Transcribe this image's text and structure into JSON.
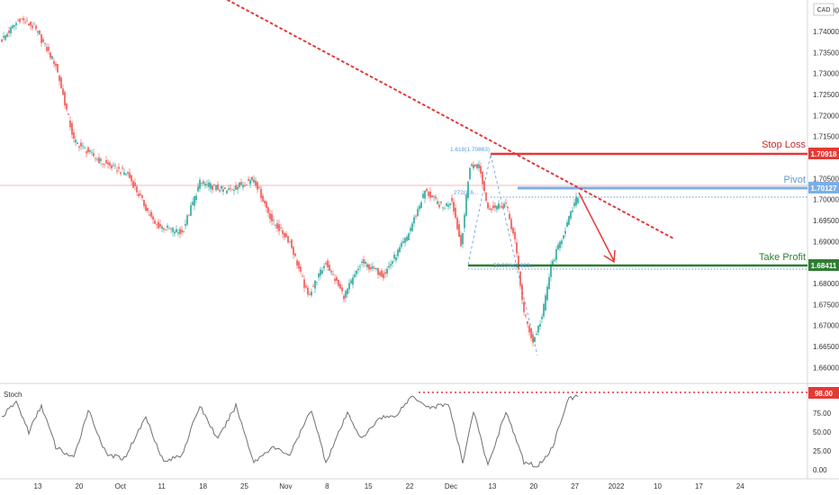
{
  "header": {
    "currency": "CAD"
  },
  "colors": {
    "up": "#26a69a",
    "down": "#ef5350",
    "stop": "#e53935",
    "pivot": "#7baee8",
    "take_profit": "#2e7d32",
    "stoch": "#707070",
    "fib": "#5b9bd5"
  },
  "price_axis": {
    "ticks": [
      "1.74500",
      "1.74000",
      "1.73500",
      "1.73000",
      "1.72500",
      "1.72000",
      "1.71500",
      "1.70500",
      "1.70000",
      "1.69500",
      "1.69000",
      "1.68000",
      "1.67500",
      "1.67000",
      "1.66500",
      "1.66000"
    ]
  },
  "stoch_axis": {
    "ticks": [
      "75.00",
      "50.00",
      "25.00",
      "0.00"
    ]
  },
  "time_axis": {
    "ticks": [
      "13",
      "20",
      "Oct",
      "11",
      "18",
      "25",
      "Nov",
      "8",
      "15",
      "22",
      "Dec",
      "13",
      "20",
      "27",
      "2022",
      "10",
      "17",
      "24"
    ]
  },
  "levels": {
    "stop_loss": {
      "label": "Stop Loss",
      "value": "1.70918"
    },
    "pivot": {
      "label": "Pivot",
      "value": "1.70127"
    },
    "take_profit": {
      "label": "Take Profit",
      "value": "1.68411"
    }
  },
  "fib_labels": {
    "ext": "1.618(1.70863)",
    "ret1": "272(1.6...",
    "ret2": "50.00%(1.683..."
  },
  "stoch": {
    "title": "Stoch",
    "current": "98.00"
  },
  "chart_data": [
    {
      "type": "candlestick",
      "title": "",
      "currency": "CAD",
      "ylim": [
        1.6575,
        1.7475
      ],
      "x_ticks": [
        "13",
        "20",
        "Oct",
        "11",
        "18",
        "25",
        "Nov",
        "8",
        "15",
        "22",
        "Dec",
        "13",
        "20",
        "27",
        "2022",
        "10",
        "17",
        "24"
      ],
      "anchors": [
        {
          "i": 0,
          "close": 1.738
        },
        {
          "i": 10,
          "close": 1.743
        },
        {
          "i": 18,
          "close": 1.741
        },
        {
          "i": 30,
          "close": 1.732
        },
        {
          "i": 40,
          "close": 1.714
        },
        {
          "i": 55,
          "close": 1.709
        },
        {
          "i": 70,
          "close": 1.706
        },
        {
          "i": 85,
          "close": 1.694
        },
        {
          "i": 100,
          "close": 1.692
        },
        {
          "i": 110,
          "close": 1.704
        },
        {
          "i": 125,
          "close": 1.702
        },
        {
          "i": 140,
          "close": 1.705
        },
        {
          "i": 150,
          "close": 1.695
        },
        {
          "i": 160,
          "close": 1.69
        },
        {
          "i": 170,
          "close": 1.677
        },
        {
          "i": 180,
          "close": 1.685
        },
        {
          "i": 190,
          "close": 1.677
        },
        {
          "i": 200,
          "close": 1.685
        },
        {
          "i": 212,
          "close": 1.682
        },
        {
          "i": 225,
          "close": 1.691
        },
        {
          "i": 235,
          "close": 1.702
        },
        {
          "i": 245,
          "close": 1.698
        },
        {
          "i": 250,
          "close": 1.7
        },
        {
          "i": 255,
          "close": 1.689
        },
        {
          "i": 260,
          "close": 1.708
        },
        {
          "i": 265,
          "close": 1.708
        },
        {
          "i": 270,
          "close": 1.698
        },
        {
          "i": 280,
          "close": 1.699
        },
        {
          "i": 285,
          "close": 1.69
        },
        {
          "i": 290,
          "close": 1.673
        },
        {
          "i": 295,
          "close": 1.666
        },
        {
          "i": 300,
          "close": 1.672
        },
        {
          "i": 305,
          "close": 1.684
        },
        {
          "i": 312,
          "close": 1.692
        },
        {
          "i": 320,
          "close": 1.701
        }
      ],
      "levels": [
        {
          "name": "Stop Loss",
          "value": 1.70918
        },
        {
          "name": "Pivot",
          "value": 1.70127
        },
        {
          "name": "Take Profit",
          "value": 1.68411
        }
      ],
      "trendline": {
        "start": {
          "i": 125,
          "price": 1.7475
        },
        "end": {
          "i": 373,
          "price": 1.6895
        }
      }
    },
    {
      "type": "line",
      "title": "Stoch",
      "ylim": [
        0,
        100
      ],
      "y_ticks": [
        75,
        50,
        25,
        0
      ],
      "reference": 98.0,
      "anchors": [
        {
          "i": 0,
          "v": 70
        },
        {
          "i": 8,
          "v": 90
        },
        {
          "i": 15,
          "v": 50
        },
        {
          "i": 22,
          "v": 85
        },
        {
          "i": 30,
          "v": 30
        },
        {
          "i": 40,
          "v": 15
        },
        {
          "i": 48,
          "v": 80
        },
        {
          "i": 58,
          "v": 20
        },
        {
          "i": 68,
          "v": 15
        },
        {
          "i": 80,
          "v": 70
        },
        {
          "i": 90,
          "v": 10
        },
        {
          "i": 100,
          "v": 20
        },
        {
          "i": 110,
          "v": 85
        },
        {
          "i": 120,
          "v": 40
        },
        {
          "i": 130,
          "v": 85
        },
        {
          "i": 140,
          "v": 10
        },
        {
          "i": 150,
          "v": 30
        },
        {
          "i": 160,
          "v": 20
        },
        {
          "i": 172,
          "v": 80
        },
        {
          "i": 180,
          "v": 10
        },
        {
          "i": 192,
          "v": 75
        },
        {
          "i": 200,
          "v": 40
        },
        {
          "i": 210,
          "v": 70
        },
        {
          "i": 218,
          "v": 70
        },
        {
          "i": 228,
          "v": 98
        },
        {
          "i": 238,
          "v": 82
        },
        {
          "i": 248,
          "v": 88
        },
        {
          "i": 256,
          "v": 10
        },
        {
          "i": 262,
          "v": 78
        },
        {
          "i": 270,
          "v": 5
        },
        {
          "i": 280,
          "v": 78
        },
        {
          "i": 290,
          "v": 10
        },
        {
          "i": 298,
          "v": 5
        },
        {
          "i": 306,
          "v": 30
        },
        {
          "i": 314,
          "v": 92
        },
        {
          "i": 320,
          "v": 98
        }
      ]
    }
  ]
}
